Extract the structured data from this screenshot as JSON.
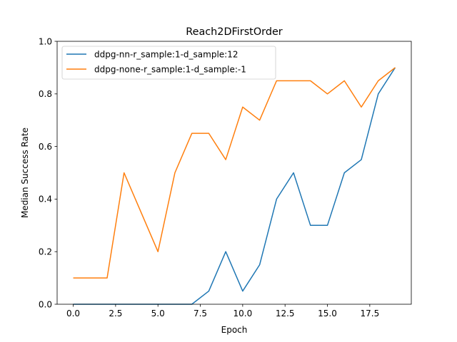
{
  "chart_data": {
    "type": "line",
    "title": "Reach2DFirstOrder",
    "xlabel": "Epoch",
    "ylabel": "Median Success Rate",
    "xlim": [
      -0.95,
      19.95
    ],
    "ylim": [
      0.0,
      1.0
    ],
    "x_ticks": [
      0.0,
      2.5,
      5.0,
      7.5,
      10.0,
      12.5,
      15.0,
      17.5
    ],
    "x_tick_labels": [
      "0.0",
      "2.5",
      "5.0",
      "7.5",
      "10.0",
      "12.5",
      "15.0",
      "17.5"
    ],
    "y_ticks": [
      0.0,
      0.2,
      0.4,
      0.6,
      0.8,
      1.0
    ],
    "y_tick_labels": [
      "0.0",
      "0.2",
      "0.4",
      "0.6",
      "0.8",
      "1.0"
    ],
    "grid": false,
    "legend_position": "top-left",
    "x": [
      0,
      1,
      2,
      3,
      4,
      5,
      6,
      7,
      8,
      9,
      10,
      11,
      12,
      13,
      14,
      15,
      16,
      17,
      18,
      19
    ],
    "series": [
      {
        "name": "ddpg-nn-r_sample:1-d_sample:12",
        "color": "#1f77b4",
        "values": [
          0,
          0,
          0,
          0,
          0,
          0,
          0,
          0,
          0.05,
          0.2,
          0.05,
          0.15,
          0.4,
          0.5,
          0.3,
          0.3,
          0.5,
          0.55,
          0.8,
          0.9
        ]
      },
      {
        "name": "ddpg-none-r_sample:1-d_sample:-1",
        "color": "#ff7f0e",
        "values": [
          0.1,
          0.1,
          0.1,
          0.5,
          0.35,
          0.2,
          0.5,
          0.65,
          0.65,
          0.55,
          0.75,
          0.7,
          0.85,
          0.85,
          0.85,
          0.8,
          0.85,
          0.75,
          0.85,
          0.9
        ]
      }
    ]
  }
}
